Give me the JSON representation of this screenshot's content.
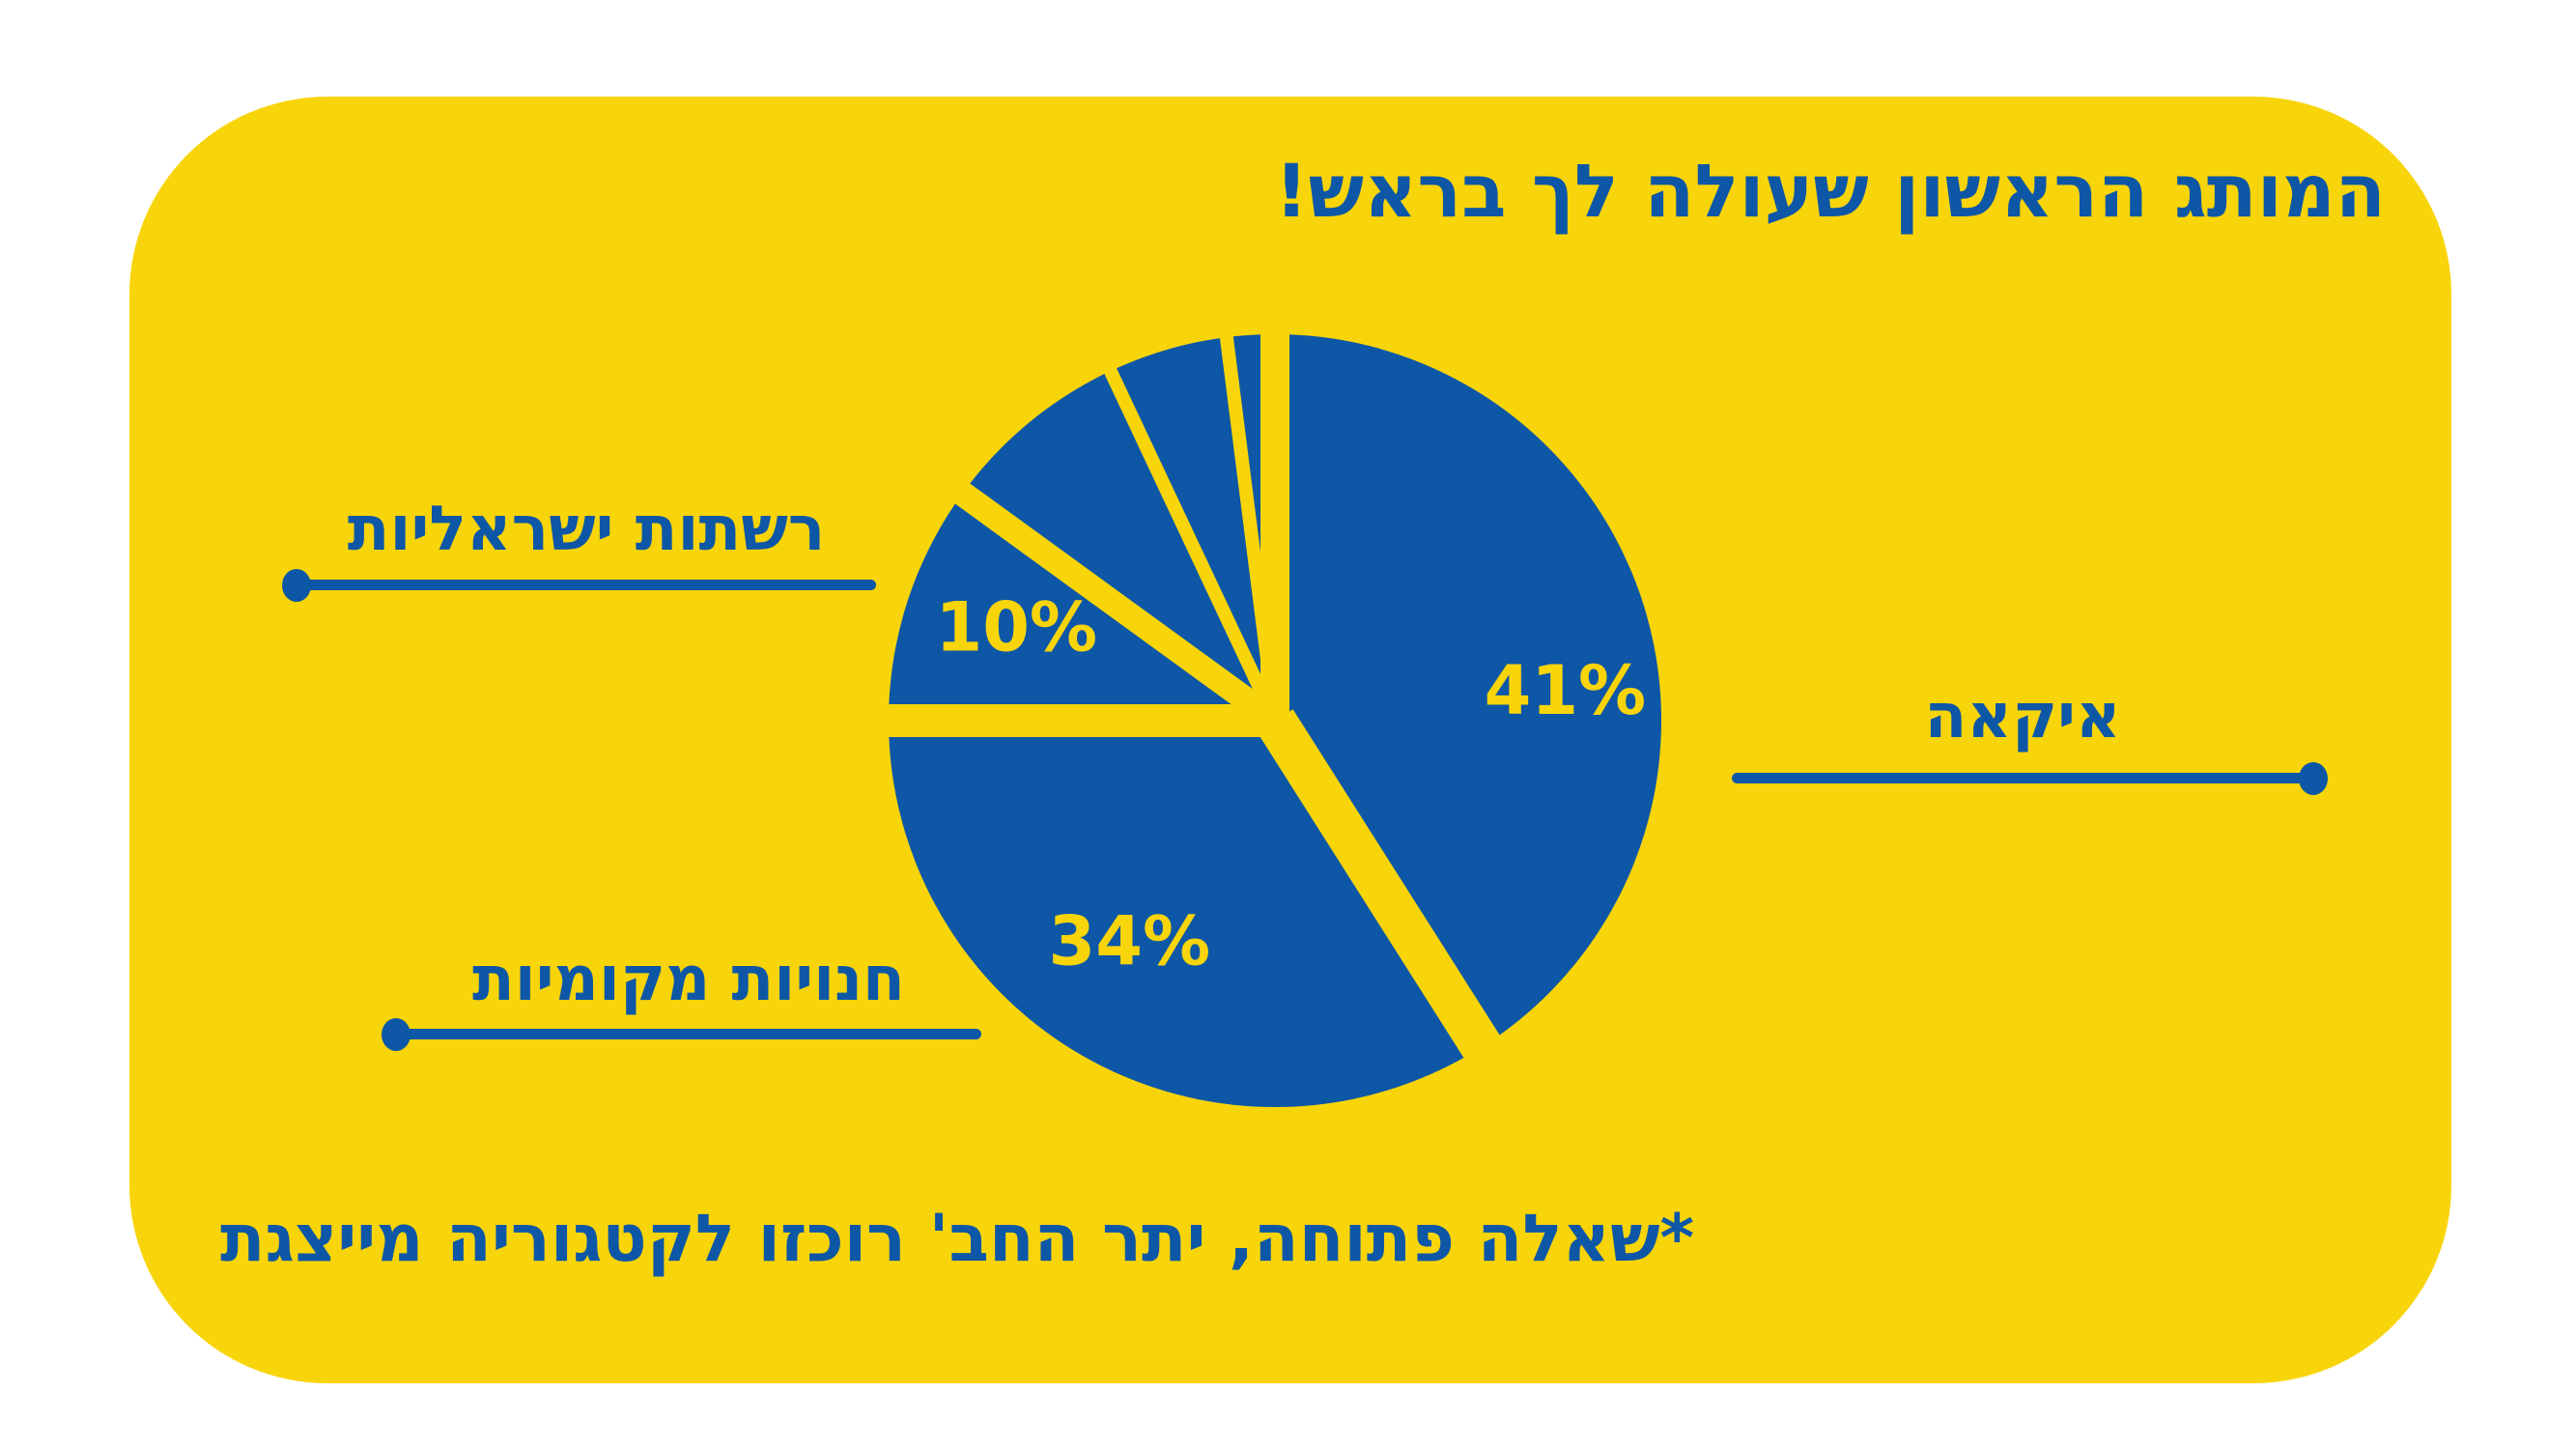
{
  "page": {
    "background": "#FFFFFF"
  },
  "card": {
    "background": "#F8D40A",
    "accent_blue": "#0D57A6",
    "title": "המותג הראשון שעולה לך בראש!",
    "footnote": "*שאלה פתוחה, יתר החב' רוכזו לקטגוריה מייצגת"
  },
  "chart_data": {
    "type": "pie",
    "title": "המותג הראשון שעולה לך בראש!",
    "direction": "clockwise",
    "start_angle_deg": 0,
    "colors": {
      "slice_fill": "#0D57A6",
      "separator": "#F8D40A",
      "pct_label": "#F8D40A"
    },
    "slices": [
      {
        "label": "איקאה",
        "value": 41,
        "pct_label": "41%"
      },
      {
        "label": "חנויות מקומיות",
        "value": 34,
        "pct_label": "34%"
      },
      {
        "label": "רשתות ישראליות",
        "value": 10,
        "pct_label": "10%"
      },
      {
        "label": "",
        "value": 8,
        "pct_label": ""
      },
      {
        "label": "",
        "value": 5,
        "pct_label": ""
      },
      {
        "label": "",
        "value": 2,
        "pct_label": ""
      }
    ]
  },
  "callouts": [
    {
      "id": "ikea",
      "label": "איקאה",
      "dot_side": "right"
    },
    {
      "id": "israeli-chains",
      "label": "רשתות ישראליות",
      "dot_side": "left"
    },
    {
      "id": "local-stores",
      "label": "חנויות מקומיות",
      "dot_side": "left"
    }
  ]
}
